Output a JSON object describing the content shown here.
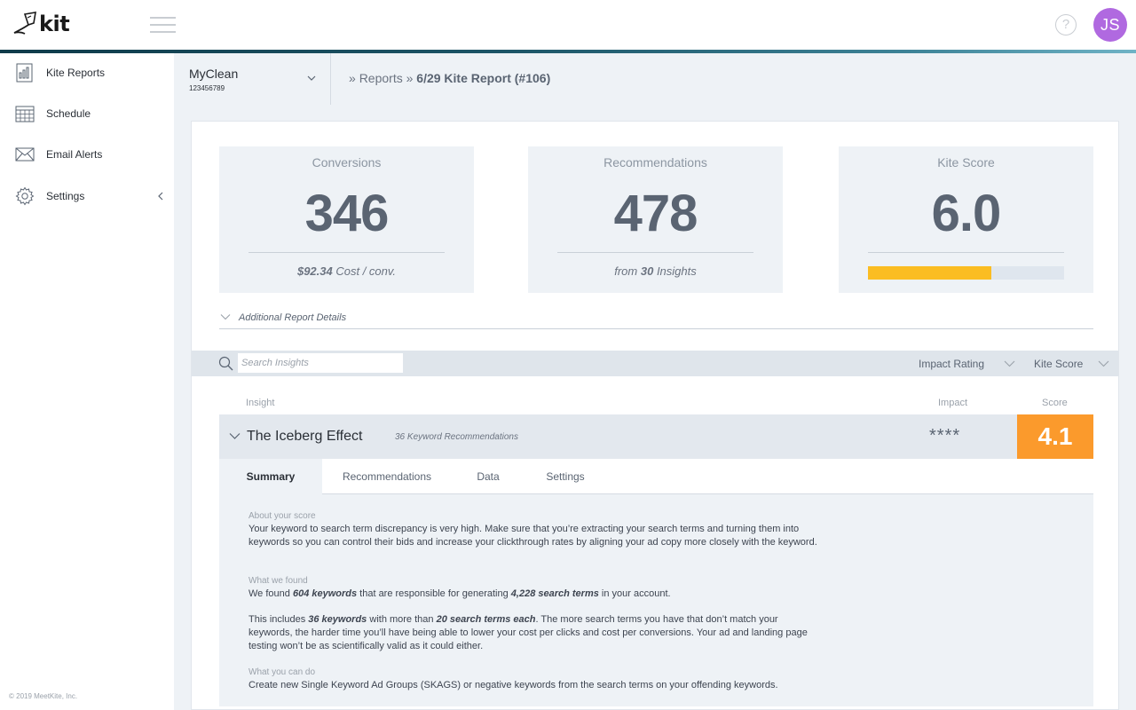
{
  "header": {
    "logo_text": "kit",
    "help_symbol": "?",
    "user_initials": "JS",
    "colors": {
      "avatar": "#b069e0",
      "accent_line": "#1c5567"
    }
  },
  "sidebar": {
    "items": [
      {
        "label": "Kite Reports",
        "icon": "report-chart-icon"
      },
      {
        "label": "Schedule",
        "icon": "calendar-icon"
      },
      {
        "label": "Email Alerts",
        "icon": "envelope-icon"
      },
      {
        "label": "Settings",
        "icon": "gear-icon"
      }
    ],
    "copyright": "© 2019 MeetKite, Inc."
  },
  "account": {
    "name": "MyClean",
    "id": "123456789"
  },
  "breadcrumb": {
    "sep1": "»",
    "reports": "Reports",
    "sep2": "»",
    "current": "6/29 Kite Report (#106)"
  },
  "stats": {
    "conversions": {
      "title": "Conversions",
      "value": "346",
      "foot_value": "$92.34",
      "foot_text": " Cost / conv."
    },
    "recommendations": {
      "title": "Recommendations",
      "value": "478",
      "foot_prefix": "from ",
      "foot_value": "30",
      "foot_text": " Insights"
    },
    "kite_score": {
      "title": "Kite Score",
      "value": "6.0",
      "fill_fraction": 0.63,
      "bar_color": "#fbbd22"
    }
  },
  "details_toggle": "Additional Report Details",
  "search": {
    "placeholder": "Search Insights"
  },
  "filters": {
    "impact": "Impact Rating",
    "score": "Kite Score"
  },
  "columns": {
    "insight": "Insight",
    "impact": "Impact",
    "score": "Score"
  },
  "insight": {
    "title": "The Iceberg Effect",
    "count": "36 Keyword Recommendations",
    "impact_stars": "****",
    "score": "4.1",
    "score_color": "#fb9a2c"
  },
  "tabs": [
    "Summary",
    "Recommendations",
    "Data",
    "Settings"
  ],
  "summary": {
    "about_head": "About your score",
    "about_text": "Your keyword to search term discrepancy is very high. Make sure that you’re extracting your search terms and turning them into keywords so you can control their bids and increase your clickthrough rates by aligning your ad copy more closely with the keyword.",
    "found_head": "What we found",
    "found_p1_a": "We found ",
    "found_p1_b": "604 keywords",
    "found_p1_c": " that are responsible for generating ",
    "found_p1_d": "4,228 search terms",
    "found_p1_e": " in your account.",
    "found_p2_a": "This includes ",
    "found_p2_b": "36 keywords",
    "found_p2_c": " with more than ",
    "found_p2_d": "20 search terms each",
    "found_p2_e": ". The more search terms you have that don’t match your keywords, the harder time you’ll have being able to lower your cost per clicks and cost per conversions. Your ad and landing page testing won’t be as scientifically valid as it could either.",
    "do_head": "What you can do",
    "do_text": "Create new Single Keyword Ad Groups (SKAGS) or negative keywords from the search terms on your offending keywords."
  }
}
